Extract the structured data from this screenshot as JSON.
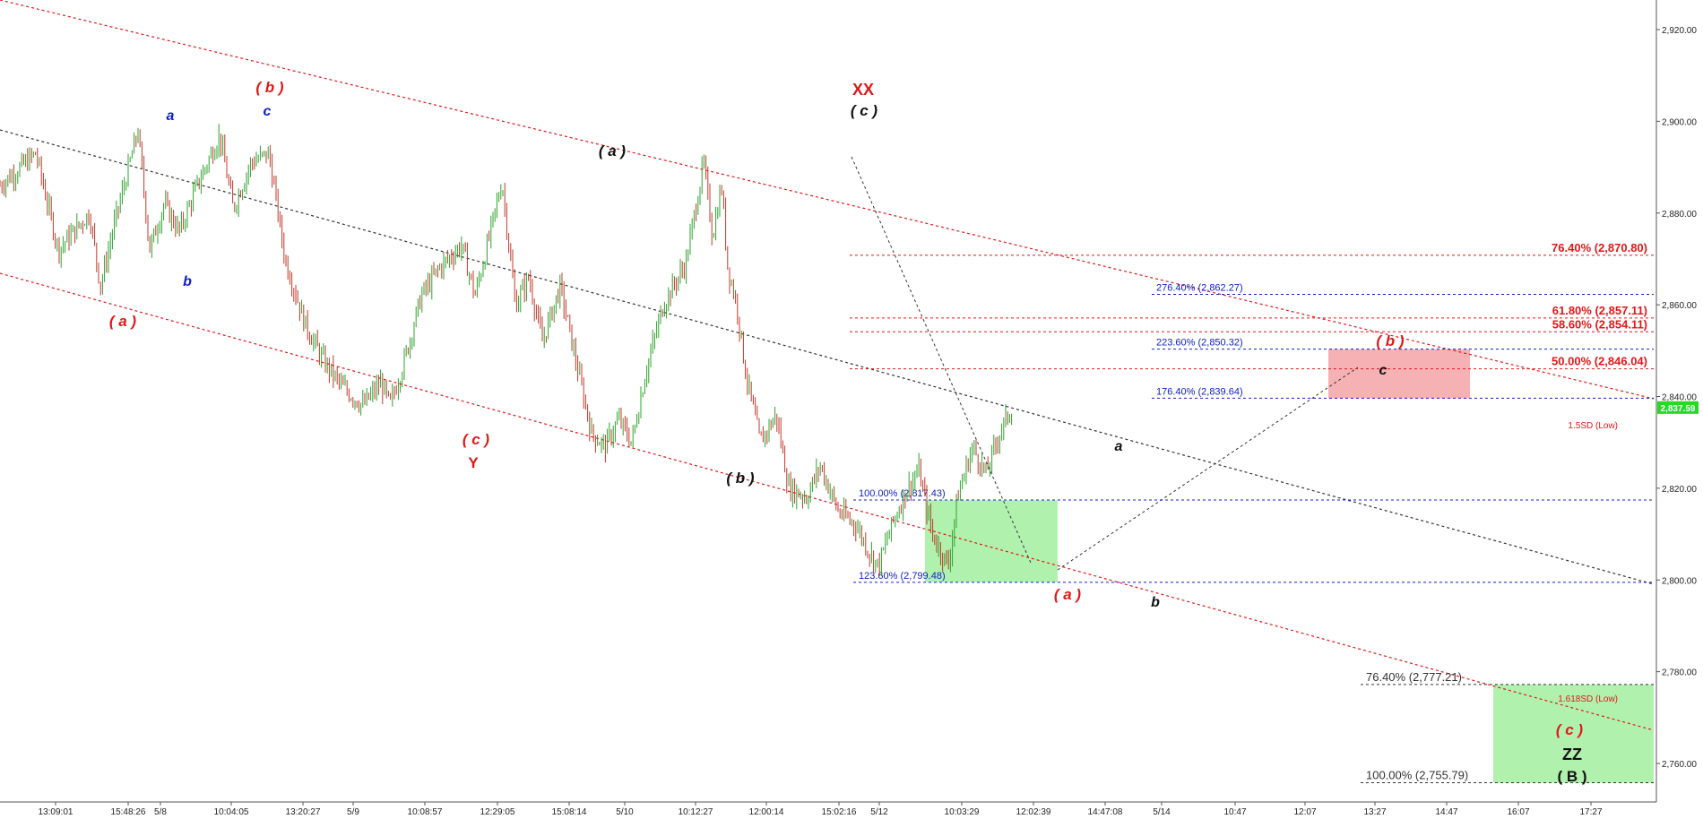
{
  "chart_data": {
    "type": "line",
    "subtype": "candlestick",
    "title": "",
    "xlabel": "",
    "ylabel": "",
    "ylim": [
      2750,
      2925
    ],
    "grid": false,
    "colors": {
      "up_candle": "#2ea32e",
      "down_candle": "#c0392b",
      "red_levels": "#e01818",
      "blue_levels": "#1020c8",
      "neutral_levels": "#222222",
      "pink_zone": "#f5a3a8",
      "green_zone": "#a3efa0",
      "price_tag": "#27d827"
    },
    "y_ticks": [
      "2,920.00",
      "2,900.00",
      "2,880.00",
      "2,860.00",
      "2,840.00",
      "2,820.00",
      "2,800.00",
      "2,780.00",
      "2,760.00"
    ],
    "x_ticks": [
      "13:09:01",
      "15:48:26",
      "5/8",
      "10:04:05",
      "13:20:27",
      "5/9",
      "10:08:57",
      "12:29:05",
      "15:08:14",
      "5/10",
      "10:12:27",
      "12:00:14",
      "15:02:16",
      "5/12",
      "10:03:29",
      "12:02:39",
      "14:47:08",
      "5/14",
      "10:47",
      "12:07",
      "13:27",
      "14:47",
      "16:07",
      "17:27"
    ],
    "price_series": [
      {
        "x": 0,
        "y": 2886
      },
      {
        "x": 40,
        "y": 2893
      },
      {
        "x": 65,
        "y": 2872
      },
      {
        "x": 100,
        "y": 2880
      },
      {
        "x": 112,
        "y": 2864
      },
      {
        "x": 128,
        "y": 2878
      },
      {
        "x": 154,
        "y": 2898
      },
      {
        "x": 167,
        "y": 2872
      },
      {
        "x": 183,
        "y": 2882
      },
      {
        "x": 200,
        "y": 2876
      },
      {
        "x": 220,
        "y": 2886
      },
      {
        "x": 245,
        "y": 2897
      },
      {
        "x": 260,
        "y": 2881
      },
      {
        "x": 280,
        "y": 2891
      },
      {
        "x": 300,
        "y": 2893
      },
      {
        "x": 318,
        "y": 2870
      },
      {
        "x": 340,
        "y": 2856
      },
      {
        "x": 360,
        "y": 2848
      },
      {
        "x": 382,
        "y": 2842
      },
      {
        "x": 405,
        "y": 2838
      },
      {
        "x": 425,
        "y": 2843
      },
      {
        "x": 435,
        "y": 2838
      },
      {
        "x": 450,
        "y": 2847
      },
      {
        "x": 470,
        "y": 2862
      },
      {
        "x": 490,
        "y": 2868
      },
      {
        "x": 515,
        "y": 2873
      },
      {
        "x": 530,
        "y": 2862
      },
      {
        "x": 545,
        "y": 2874
      },
      {
        "x": 560,
        "y": 2887
      },
      {
        "x": 575,
        "y": 2860
      },
      {
        "x": 590,
        "y": 2866
      },
      {
        "x": 605,
        "y": 2852
      },
      {
        "x": 625,
        "y": 2864
      },
      {
        "x": 640,
        "y": 2850
      },
      {
        "x": 660,
        "y": 2832
      },
      {
        "x": 675,
        "y": 2829
      },
      {
        "x": 690,
        "y": 2835
      },
      {
        "x": 705,
        "y": 2830
      },
      {
        "x": 720,
        "y": 2845
      },
      {
        "x": 740,
        "y": 2860
      },
      {
        "x": 765,
        "y": 2869
      },
      {
        "x": 785,
        "y": 2891
      },
      {
        "x": 795,
        "y": 2875
      },
      {
        "x": 805,
        "y": 2886
      },
      {
        "x": 812,
        "y": 2868
      },
      {
        "x": 822,
        "y": 2860
      },
      {
        "x": 832,
        "y": 2845
      },
      {
        "x": 848,
        "y": 2830
      },
      {
        "x": 866,
        "y": 2836
      },
      {
        "x": 880,
        "y": 2820
      },
      {
        "x": 900,
        "y": 2818
      },
      {
        "x": 915,
        "y": 2825
      },
      {
        "x": 935,
        "y": 2815
      },
      {
        "x": 955,
        "y": 2812
      },
      {
        "x": 970,
        "y": 2806
      },
      {
        "x": 980,
        "y": 2803
      },
      {
        "x": 995,
        "y": 2812
      },
      {
        "x": 1010,
        "y": 2819
      },
      {
        "x": 1025,
        "y": 2824
      },
      {
        "x": 1040,
        "y": 2810
      },
      {
        "x": 1058,
        "y": 2803
      },
      {
        "x": 1068,
        "y": 2818
      },
      {
        "x": 1085,
        "y": 2829
      },
      {
        "x": 1100,
        "y": 2823
      },
      {
        "x": 1115,
        "y": 2832
      },
      {
        "x": 1130,
        "y": 2838
      }
    ],
    "horizontal_levels": [
      {
        "label": "76.40% (2,870.80)",
        "value": 2870.8,
        "color": "red"
      },
      {
        "label": "276.40% (2,862.27)",
        "value": 2862.27,
        "color": "blue"
      },
      {
        "label": "61.80% (2,857.11)",
        "value": 2857.11,
        "color": "red"
      },
      {
        "label": "58.60% (2,854.11)",
        "value": 2854.11,
        "color": "red"
      },
      {
        "label": "223.60% (2,850.32)",
        "value": 2850.32,
        "color": "blue"
      },
      {
        "label": "50.00% (2,846.04)",
        "value": 2846.04,
        "color": "red"
      },
      {
        "label": "176.40% (2,839.64)",
        "value": 2839.64,
        "color": "blue"
      },
      {
        "label": "100.00% (2,817.43)",
        "value": 2817.43,
        "color": "blue"
      },
      {
        "label": "123.60% (2,799.48)",
        "value": 2799.48,
        "color": "blue"
      },
      {
        "label": "76.40% (2,777.21)",
        "value": 2777.21,
        "color": "neutral"
      },
      {
        "label": "100.00% (2,755.79)",
        "value": 2755.79,
        "color": "neutral"
      }
    ],
    "zones": [
      {
        "name": "pink",
        "y_top": 2850.3,
        "y_bottom": 2839.6
      },
      {
        "name": "green-left",
        "y_top": 2817.4,
        "y_bottom": 2799.5
      },
      {
        "name": "green-right",
        "y_top": 2777.2,
        "y_bottom": 2755.8
      }
    ],
    "current_price_tag": "2,837.59",
    "channel_labels": [
      "1.5SD (Low)",
      "1.618SD (Low)"
    ],
    "wave_labels": [
      {
        "text": "( a )",
        "color": "red"
      },
      {
        "text": "a",
        "color": "blue"
      },
      {
        "text": "b",
        "color": "blue"
      },
      {
        "text": "( b )",
        "color": "red"
      },
      {
        "text": "c",
        "color": "blue"
      },
      {
        "text": "( c )",
        "color": "red"
      },
      {
        "text": "Y",
        "color": "red"
      },
      {
        "text": "( a )",
        "color": "black"
      },
      {
        "text": "( b )",
        "color": "black"
      },
      {
        "text": "XX",
        "color": "red"
      },
      {
        "text": "( c )",
        "color": "black"
      },
      {
        "text": "( a )",
        "color": "red"
      },
      {
        "text": "a",
        "color": "black"
      },
      {
        "text": "b",
        "color": "black"
      },
      {
        "text": "c",
        "color": "black"
      },
      {
        "text": "( b )",
        "color": "red"
      },
      {
        "text": "( c )",
        "color": "red"
      },
      {
        "text": "ZZ",
        "color": "black"
      },
      {
        "text": "( B )",
        "color": "black"
      }
    ]
  }
}
